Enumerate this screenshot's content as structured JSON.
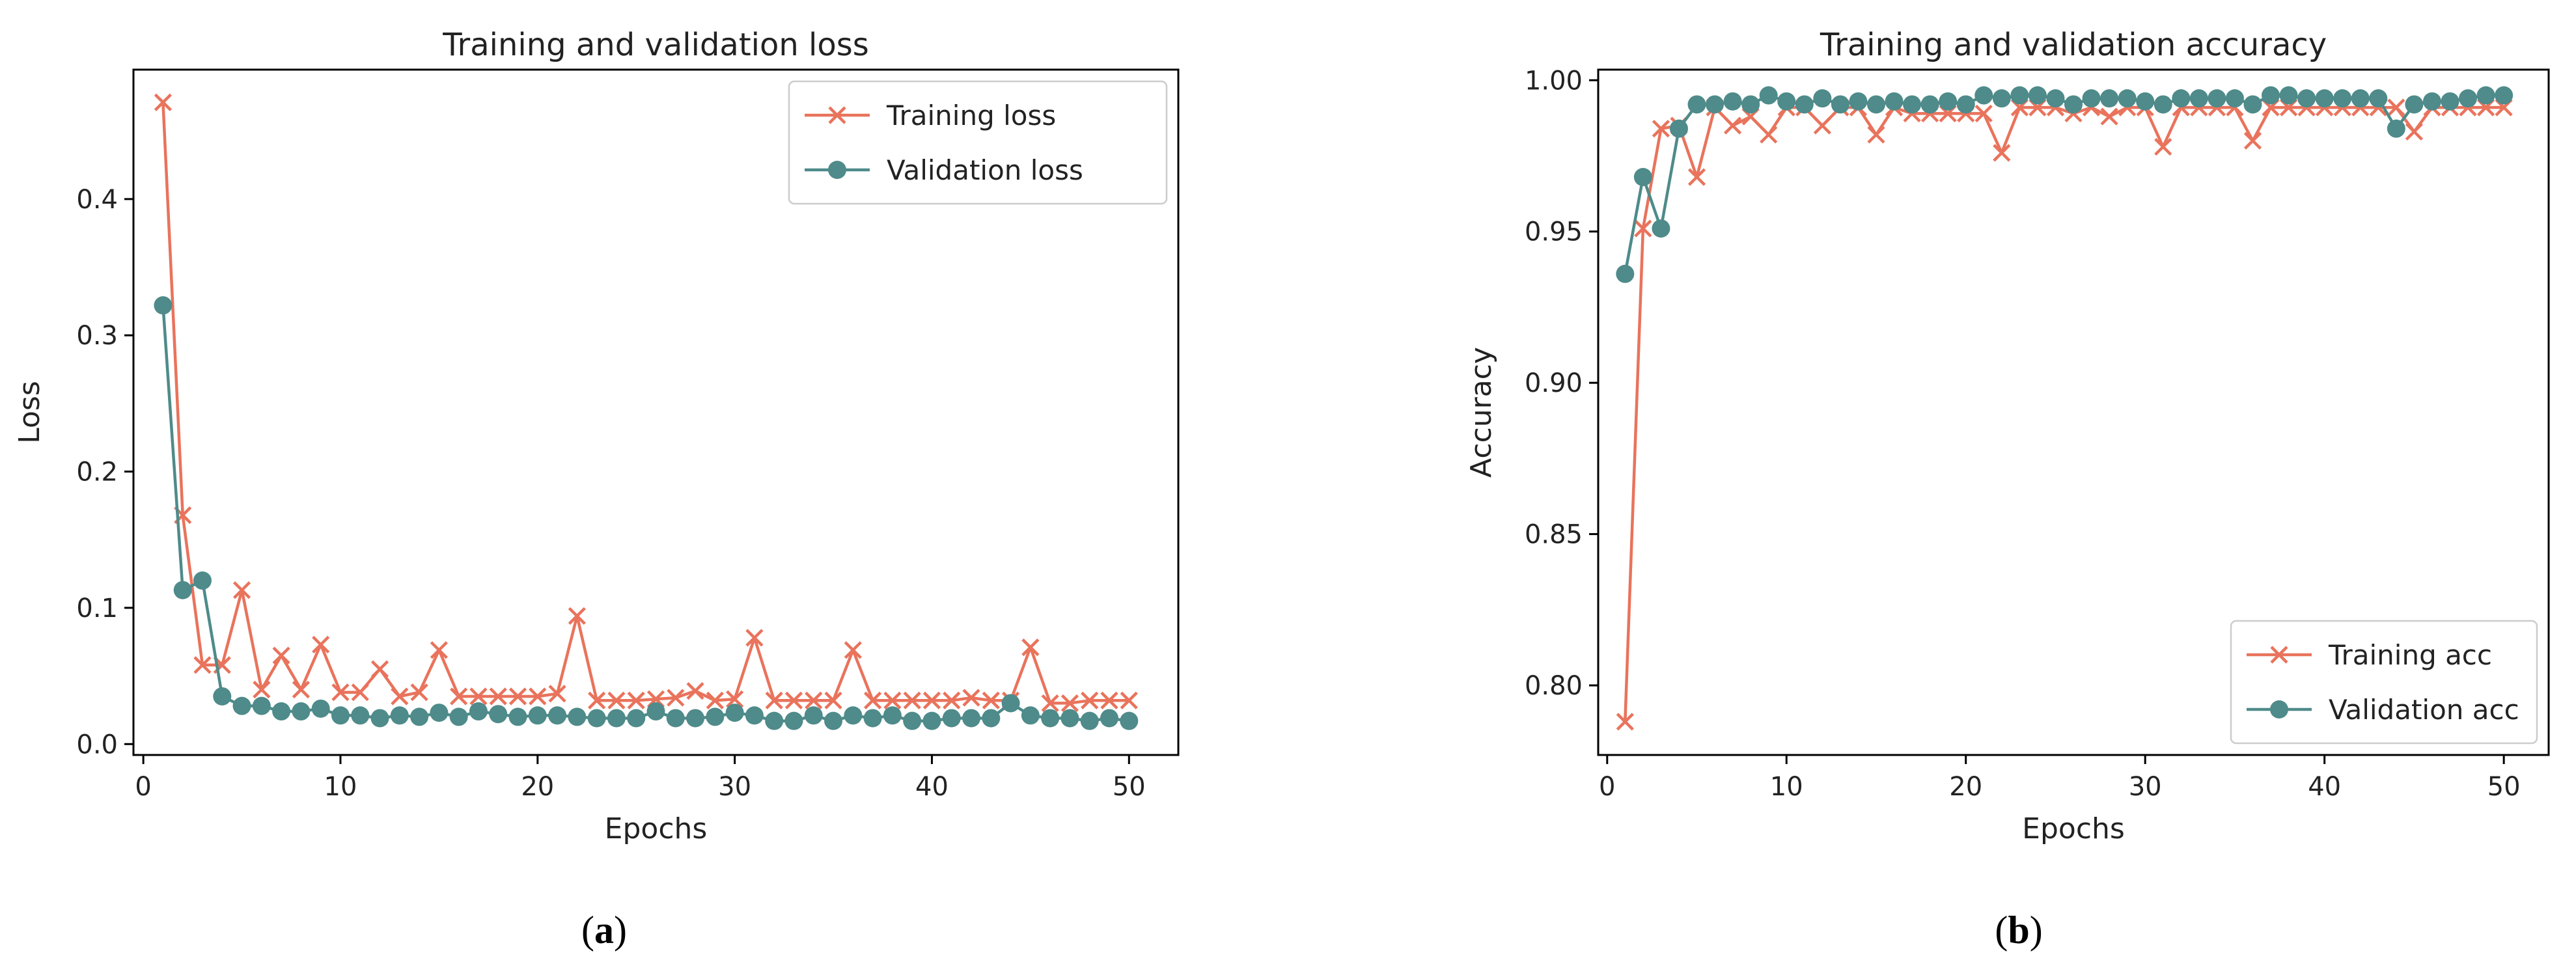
{
  "colors": {
    "training": "#E9735C",
    "validation": "#4E8B8A",
    "axis": "#000000",
    "text": "#222222"
  },
  "chart_data": [
    {
      "type": "line",
      "title": "Training and validation loss",
      "xlabel": "Epochs",
      "ylabel": "Loss",
      "xlim": [
        -0.5,
        52.5
      ],
      "ylim": [
        -0.008,
        0.495
      ],
      "xticks": [
        0,
        10,
        20,
        30,
        40,
        50
      ],
      "yticks": [
        0.0,
        0.1,
        0.2,
        0.3,
        0.4
      ],
      "ytick_decimals": 1,
      "grid": false,
      "legend_position": "top-right",
      "x": [
        1,
        2,
        3,
        4,
        5,
        6,
        7,
        8,
        9,
        10,
        11,
        12,
        13,
        14,
        15,
        16,
        17,
        18,
        19,
        20,
        21,
        22,
        23,
        24,
        25,
        26,
        27,
        28,
        29,
        30,
        31,
        32,
        33,
        34,
        35,
        36,
        37,
        38,
        39,
        40,
        41,
        42,
        43,
        44,
        45,
        46,
        47,
        48,
        49,
        50
      ],
      "series": [
        {
          "name": "Training loss",
          "marker": "x",
          "values": [
            0.471,
            0.168,
            0.058,
            0.058,
            0.113,
            0.04,
            0.065,
            0.04,
            0.073,
            0.038,
            0.038,
            0.055,
            0.035,
            0.038,
            0.069,
            0.035,
            0.035,
            0.035,
            0.035,
            0.035,
            0.037,
            0.094,
            0.032,
            0.032,
            0.032,
            0.033,
            0.034,
            0.039,
            0.032,
            0.033,
            0.078,
            0.032,
            0.032,
            0.032,
            0.032,
            0.069,
            0.032,
            0.032,
            0.032,
            0.032,
            0.032,
            0.034,
            0.032,
            0.032,
            0.071,
            0.03,
            0.03,
            0.032,
            0.032,
            0.032
          ]
        },
        {
          "name": "Validation loss",
          "marker": "o",
          "values": [
            0.322,
            0.113,
            0.12,
            0.035,
            0.028,
            0.028,
            0.024,
            0.024,
            0.026,
            0.021,
            0.021,
            0.019,
            0.021,
            0.02,
            0.023,
            0.02,
            0.024,
            0.022,
            0.02,
            0.021,
            0.021,
            0.02,
            0.019,
            0.019,
            0.019,
            0.024,
            0.019,
            0.019,
            0.02,
            0.023,
            0.021,
            0.017,
            0.017,
            0.021,
            0.017,
            0.021,
            0.019,
            0.021,
            0.017,
            0.017,
            0.019,
            0.019,
            0.019,
            0.03,
            0.021,
            0.019,
            0.019,
            0.017,
            0.019,
            0.017
          ]
        }
      ]
    },
    {
      "type": "line",
      "title": "Training and validation accuracy",
      "xlabel": "Epochs",
      "ylabel": "Accuracy",
      "xlim": [
        -0.5,
        52.5
      ],
      "ylim": [
        0.777,
        1.0035
      ],
      "xticks": [
        0,
        10,
        20,
        30,
        40,
        50
      ],
      "yticks": [
        0.8,
        0.85,
        0.9,
        0.95,
        1.0
      ],
      "ytick_decimals": 2,
      "grid": false,
      "legend_position": "bottom-right",
      "x": [
        1,
        2,
        3,
        4,
        5,
        6,
        7,
        8,
        9,
        10,
        11,
        12,
        13,
        14,
        15,
        16,
        17,
        18,
        19,
        20,
        21,
        22,
        23,
        24,
        25,
        26,
        27,
        28,
        29,
        30,
        31,
        32,
        33,
        34,
        35,
        36,
        37,
        38,
        39,
        40,
        41,
        42,
        43,
        44,
        45,
        46,
        47,
        48,
        49,
        50
      ],
      "series": [
        {
          "name": "Training acc",
          "marker": "x",
          "values": [
            0.788,
            0.951,
            0.984,
            0.985,
            0.968,
            0.991,
            0.985,
            0.988,
            0.982,
            0.991,
            0.991,
            0.985,
            0.991,
            0.991,
            0.982,
            0.991,
            0.989,
            0.989,
            0.989,
            0.989,
            0.989,
            0.976,
            0.991,
            0.991,
            0.991,
            0.989,
            0.991,
            0.988,
            0.991,
            0.991,
            0.978,
            0.991,
            0.991,
            0.991,
            0.991,
            0.98,
            0.991,
            0.991,
            0.991,
            0.991,
            0.991,
            0.991,
            0.991,
            0.991,
            0.983,
            0.991,
            0.991,
            0.991,
            0.991,
            0.991
          ]
        },
        {
          "name": "Validation acc",
          "marker": "o",
          "values": [
            0.936,
            0.968,
            0.951,
            0.984,
            0.992,
            0.992,
            0.993,
            0.992,
            0.995,
            0.993,
            0.992,
            0.994,
            0.992,
            0.993,
            0.992,
            0.993,
            0.992,
            0.992,
            0.993,
            0.992,
            0.995,
            0.994,
            0.995,
            0.995,
            0.994,
            0.992,
            0.994,
            0.994,
            0.994,
            0.993,
            0.992,
            0.994,
            0.994,
            0.994,
            0.994,
            0.992,
            0.995,
            0.995,
            0.994,
            0.994,
            0.994,
            0.994,
            0.994,
            0.984,
            0.992,
            0.993,
            0.993,
            0.994,
            0.995,
            0.995
          ]
        }
      ]
    }
  ],
  "panel_labels": [
    {
      "open": "(",
      "letter": "a",
      "close": ")"
    },
    {
      "open": "(",
      "letter": "b",
      "close": ")"
    }
  ]
}
